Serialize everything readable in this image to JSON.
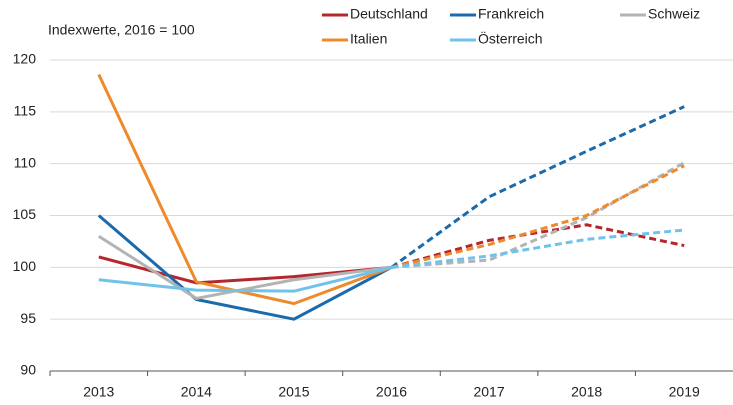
{
  "chart_data": {
    "type": "line",
    "ylabel": "Indexwerte, 2016 = 100",
    "categories": [
      "2013",
      "2014",
      "2015",
      "2016",
      "2017",
      "2018",
      "2019"
    ],
    "dashed_from": "2016",
    "series": [
      {
        "name": "Deutschland",
        "color": "#b5272d",
        "values": [
          101,
          98.5,
          99.1,
          100,
          102.6,
          104.1,
          102.1
        ]
      },
      {
        "name": "Frankreich",
        "color": "#1a6aac",
        "values": [
          105,
          96.9,
          95,
          100,
          106.8,
          111.2,
          115.5
        ]
      },
      {
        "name": "Schweiz",
        "color": "#b3b3b3",
        "values": [
          103,
          97,
          98.8,
          100,
          100.7,
          104.8,
          110.1
        ]
      },
      {
        "name": "Italien",
        "color": "#ee8a2b",
        "values": [
          118.6,
          98.6,
          96.5,
          100,
          102.2,
          105,
          109.8
        ]
      },
      {
        "name": "Österreich",
        "color": "#6fc2ea",
        "values": [
          98.8,
          97.8,
          97.7,
          100,
          101.1,
          102.7,
          103.6
        ]
      }
    ],
    "ylim": [
      90,
      120
    ],
    "yticks": [
      90,
      95,
      100,
      105,
      110,
      115,
      120
    ],
    "grid": true
  }
}
